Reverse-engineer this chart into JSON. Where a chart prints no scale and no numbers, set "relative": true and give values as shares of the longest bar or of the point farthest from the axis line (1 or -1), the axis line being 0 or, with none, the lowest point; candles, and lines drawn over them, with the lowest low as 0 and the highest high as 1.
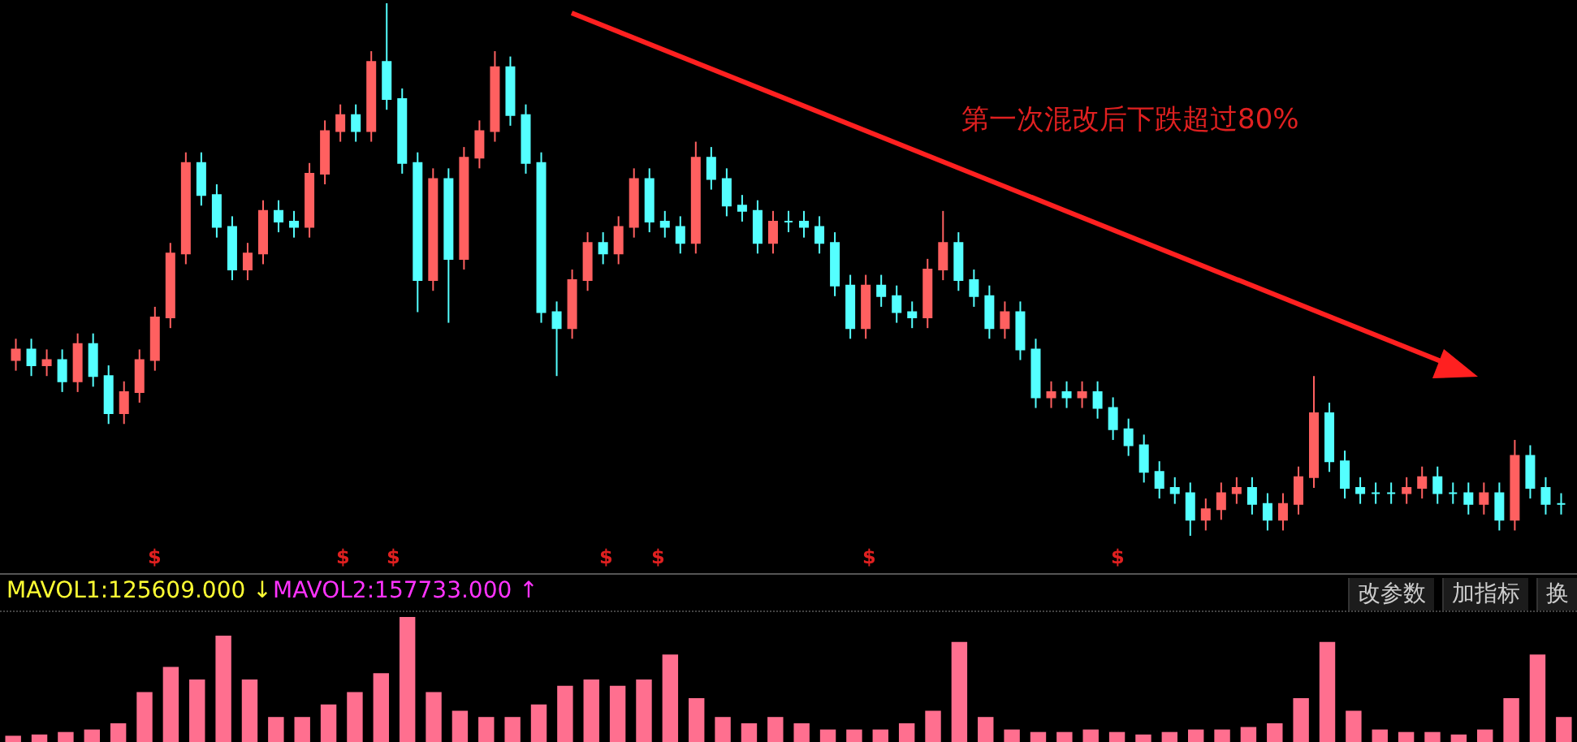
{
  "chart_data": [
    {
      "type": "candlestick",
      "relative": true,
      "annotations": [
        "第一次混改后下跌超过80%",
        "$",
        "$",
        "$",
        "$",
        "$",
        "$",
        "$"
      ],
      "ohlc": [
        [
          0.33,
          0.37,
          0.31,
          0.35
        ],
        [
          0.35,
          0.37,
          0.3,
          0.32
        ],
        [
          0.32,
          0.35,
          0.3,
          0.33
        ],
        [
          0.33,
          0.35,
          0.27,
          0.29
        ],
        [
          0.29,
          0.38,
          0.27,
          0.36
        ],
        [
          0.36,
          0.38,
          0.28,
          0.3
        ],
        [
          0.3,
          0.32,
          0.21,
          0.23
        ],
        [
          0.23,
          0.29,
          0.21,
          0.27
        ],
        [
          0.27,
          0.35,
          0.25,
          0.33
        ],
        [
          0.33,
          0.43,
          0.31,
          0.41
        ],
        [
          0.41,
          0.55,
          0.39,
          0.53
        ],
        [
          0.53,
          0.72,
          0.51,
          0.7
        ],
        [
          0.7,
          0.72,
          0.62,
          0.64
        ],
        [
          0.64,
          0.66,
          0.56,
          0.58
        ],
        [
          0.58,
          0.6,
          0.48,
          0.5
        ],
        [
          0.5,
          0.55,
          0.48,
          0.53
        ],
        [
          0.53,
          0.63,
          0.51,
          0.61
        ],
        [
          0.61,
          0.63,
          0.57,
          0.59
        ],
        [
          0.59,
          0.61,
          0.56,
          0.58
        ],
        [
          0.58,
          0.7,
          0.56,
          0.68
        ],
        [
          0.68,
          0.78,
          0.66,
          0.76
        ],
        [
          0.76,
          0.81,
          0.74,
          0.79
        ],
        [
          0.79,
          0.81,
          0.74,
          0.76
        ],
        [
          0.76,
          0.91,
          0.74,
          0.89
        ],
        [
          0.89,
          1,
          0.8,
          0.82
        ],
        [
          0.82,
          0.84,
          0.68,
          0.7
        ],
        [
          0.7,
          0.72,
          0.42,
          0.48
        ],
        [
          0.48,
          0.69,
          0.46,
          0.67
        ],
        [
          0.67,
          0.69,
          0.4,
          0.52
        ],
        [
          0.52,
          0.73,
          0.5,
          0.71
        ],
        [
          0.71,
          0.78,
          0.69,
          0.76
        ],
        [
          0.76,
          0.91,
          0.74,
          0.88
        ],
        [
          0.88,
          0.9,
          0.77,
          0.79
        ],
        [
          0.79,
          0.81,
          0.68,
          0.7
        ],
        [
          0.7,
          0.72,
          0.4,
          0.42
        ],
        [
          0.42,
          0.44,
          0.3,
          0.39
        ],
        [
          0.39,
          0.5,
          0.37,
          0.48
        ],
        [
          0.48,
          0.57,
          0.46,
          0.55
        ],
        [
          0.55,
          0.57,
          0.51,
          0.53
        ],
        [
          0.53,
          0.6,
          0.51,
          0.58
        ],
        [
          0.58,
          0.69,
          0.56,
          0.67
        ],
        [
          0.67,
          0.69,
          0.57,
          0.59
        ],
        [
          0.59,
          0.61,
          0.56,
          0.58
        ],
        [
          0.58,
          0.6,
          0.53,
          0.55
        ],
        [
          0.55,
          0.74,
          0.53,
          0.71
        ],
        [
          0.71,
          0.73,
          0.65,
          0.67
        ],
        [
          0.67,
          0.69,
          0.6,
          0.62
        ],
        [
          0.62,
          0.64,
          0.59,
          0.61
        ],
        [
          0.61,
          0.63,
          0.53,
          0.55
        ],
        [
          0.55,
          0.61,
          0.53,
          0.59
        ],
        [
          0.59,
          0.61,
          0.57,
          0.59
        ],
        [
          0.59,
          0.61,
          0.56,
          0.58
        ],
        [
          0.58,
          0.6,
          0.53,
          0.55
        ],
        [
          0.55,
          0.57,
          0.45,
          0.47
        ],
        [
          0.47,
          0.49,
          0.37,
          0.39
        ],
        [
          0.39,
          0.49,
          0.37,
          0.47
        ],
        [
          0.47,
          0.49,
          0.43,
          0.45
        ],
        [
          0.45,
          0.47,
          0.4,
          0.42
        ],
        [
          0.42,
          0.44,
          0.39,
          0.41
        ],
        [
          0.41,
          0.52,
          0.39,
          0.5
        ],
        [
          0.5,
          0.61,
          0.48,
          0.55
        ],
        [
          0.55,
          0.57,
          0.46,
          0.48
        ],
        [
          0.48,
          0.5,
          0.43,
          0.45
        ],
        [
          0.45,
          0.47,
          0.37,
          0.39
        ],
        [
          0.39,
          0.44,
          0.37,
          0.42
        ],
        [
          0.42,
          0.44,
          0.33,
          0.35
        ],
        [
          0.35,
          0.37,
          0.24,
          0.26
        ],
        [
          0.26,
          0.29,
          0.24,
          0.27
        ],
        [
          0.27,
          0.29,
          0.24,
          0.26
        ],
        [
          0.26,
          0.29,
          0.24,
          0.27
        ],
        [
          0.27,
          0.29,
          0.22,
          0.24
        ],
        [
          0.24,
          0.26,
          0.18,
          0.2
        ],
        [
          0.2,
          0.22,
          0.15,
          0.17
        ],
        [
          0.17,
          0.19,
          0.1,
          0.12
        ],
        [
          0.12,
          0.14,
          0.07,
          0.09
        ],
        [
          0.09,
          0.11,
          0.06,
          0.08
        ],
        [
          0.08,
          0.1,
          0,
          0.03
        ],
        [
          0.03,
          0.07,
          0.01,
          0.05
        ],
        [
          0.05,
          0.1,
          0.03,
          0.08
        ],
        [
          0.08,
          0.11,
          0.06,
          0.09
        ],
        [
          0.09,
          0.11,
          0.04,
          0.06
        ],
        [
          0.06,
          0.08,
          0.01,
          0.03
        ],
        [
          0.03,
          0.08,
          0.01,
          0.06
        ],
        [
          0.06,
          0.13,
          0.04,
          0.11
        ],
        [
          0.11,
          0.3,
          0.09,
          0.23
        ],
        [
          0.23,
          0.25,
          0.12,
          0.14
        ],
        [
          0.14,
          0.16,
          0.07,
          0.09
        ],
        [
          0.09,
          0.11,
          0.06,
          0.08
        ],
        [
          0.08,
          0.1,
          0.06,
          0.08
        ],
        [
          0.08,
          0.1,
          0.06,
          0.08
        ],
        [
          0.08,
          0.11,
          0.06,
          0.09
        ],
        [
          0.09,
          0.13,
          0.07,
          0.11
        ],
        [
          0.11,
          0.13,
          0.06,
          0.08
        ],
        [
          0.08,
          0.1,
          0.06,
          0.08
        ],
        [
          0.08,
          0.1,
          0.04,
          0.06
        ],
        [
          0.06,
          0.1,
          0.04,
          0.08
        ],
        [
          0.08,
          0.1,
          0.01,
          0.03
        ],
        [
          0.03,
          0.18,
          0.01,
          0.15
        ],
        [
          0.15,
          0.17,
          0.07,
          0.09
        ],
        [
          0.09,
          0.11,
          0.04,
          0.06
        ],
        [
          0.06,
          0.08,
          0.04,
          0.06
        ]
      ],
      "colors": [
        "#ff6060",
        "#54ffff",
        "#ff6060",
        "#54ffff",
        "#ff6060",
        "#54ffff",
        "#54ffff",
        "#ff6060",
        "#ff6060",
        "#ff6060",
        "#ff6060",
        "#ff6060",
        "#54ffff",
        "#54ffff",
        "#54ffff",
        "#ff6060",
        "#ff6060",
        "#54ffff",
        "#54ffff",
        "#ff6060",
        "#ff6060",
        "#ff6060",
        "#54ffff",
        "#ff6060",
        "#54ffff",
        "#54ffff",
        "#54ffff",
        "#ff6060",
        "#54ffff",
        "#ff6060",
        "#ff6060",
        "#ff6060",
        "#54ffff",
        "#54ffff",
        "#54ffff",
        "#54ffff",
        "#ff6060",
        "#ff6060",
        "#54ffff",
        "#ff6060",
        "#ff6060",
        "#54ffff",
        "#54ffff",
        "#54ffff",
        "#ff6060",
        "#54ffff",
        "#54ffff",
        "#54ffff",
        "#54ffff",
        "#ff6060",
        "#54ffff",
        "#54ffff",
        "#54ffff",
        "#54ffff",
        "#54ffff",
        "#ff6060",
        "#54ffff",
        "#54ffff",
        "#54ffff",
        "#ff6060",
        "#ff6060",
        "#54ffff",
        "#54ffff",
        "#54ffff",
        "#ff6060",
        "#54ffff",
        "#54ffff",
        "#ff6060",
        "#54ffff",
        "#ff6060",
        "#54ffff",
        "#54ffff",
        "#54ffff",
        "#54ffff",
        "#54ffff",
        "#54ffff",
        "#54ffff",
        "#ff6060",
        "#ff6060",
        "#ff6060",
        "#54ffff",
        "#54ffff",
        "#ff6060",
        "#ff6060",
        "#ff6060",
        "#54ffff",
        "#54ffff",
        "#54ffff",
        "#54ffff",
        "#54ffff",
        "#ff6060",
        "#ff6060",
        "#54ffff",
        "#54ffff",
        "#54ffff",
        "#ff6060",
        "#54ffff",
        "#ff6060",
        "#54ffff",
        "#54ffff",
        "#54ffff"
      ]
    },
    {
      "type": "bar",
      "relative": true,
      "categories": [
        null,
        null,
        null,
        null,
        null,
        null,
        null,
        null,
        null,
        null,
        null,
        null,
        null,
        null,
        null,
        null,
        null,
        null,
        null,
        null,
        null,
        null,
        null,
        null,
        null,
        null,
        null,
        null,
        null,
        null,
        null,
        null,
        null,
        null,
        null,
        null,
        null,
        null,
        null,
        null,
        null,
        null,
        null,
        null,
        null,
        null,
        null,
        null,
        null,
        null,
        null,
        null,
        null,
        null,
        null,
        null,
        null,
        null,
        null,
        null
      ],
      "annotations": [
        "MAVOL1:125609.000 ↓",
        "MAVOL2:157733.000 ↑",
        "改参数",
        "加指标",
        "换"
      ],
      "series": [
        {
          "color": "#ff6f8f",
          "values": [
            0.05,
            0.06,
            0.08,
            0.1,
            0.15,
            0.4,
            0.6,
            0.5,
            0.85,
            0.5,
            0.2,
            0.2,
            0.3,
            0.4,
            0.55,
            1,
            0.4,
            0.25,
            0.2,
            0.2,
            0.3,
            0.45,
            0.5,
            0.45,
            0.5,
            0.7,
            0.35,
            0.2,
            0.15,
            0.2,
            0.15,
            0.1,
            0.1,
            0.1,
            0.15,
            0.25,
            0.8,
            0.2,
            0.1,
            0.08,
            0.08,
            0.1,
            0.08,
            0.06,
            0.08,
            0.1,
            0.1,
            0.12,
            0.15,
            0.35,
            0.8,
            0.25,
            0.1,
            0.08,
            0.08,
            0.06,
            0.1,
            0.35,
            0.7,
            0.2
          ]
        }
      ]
    }
  ]
}
